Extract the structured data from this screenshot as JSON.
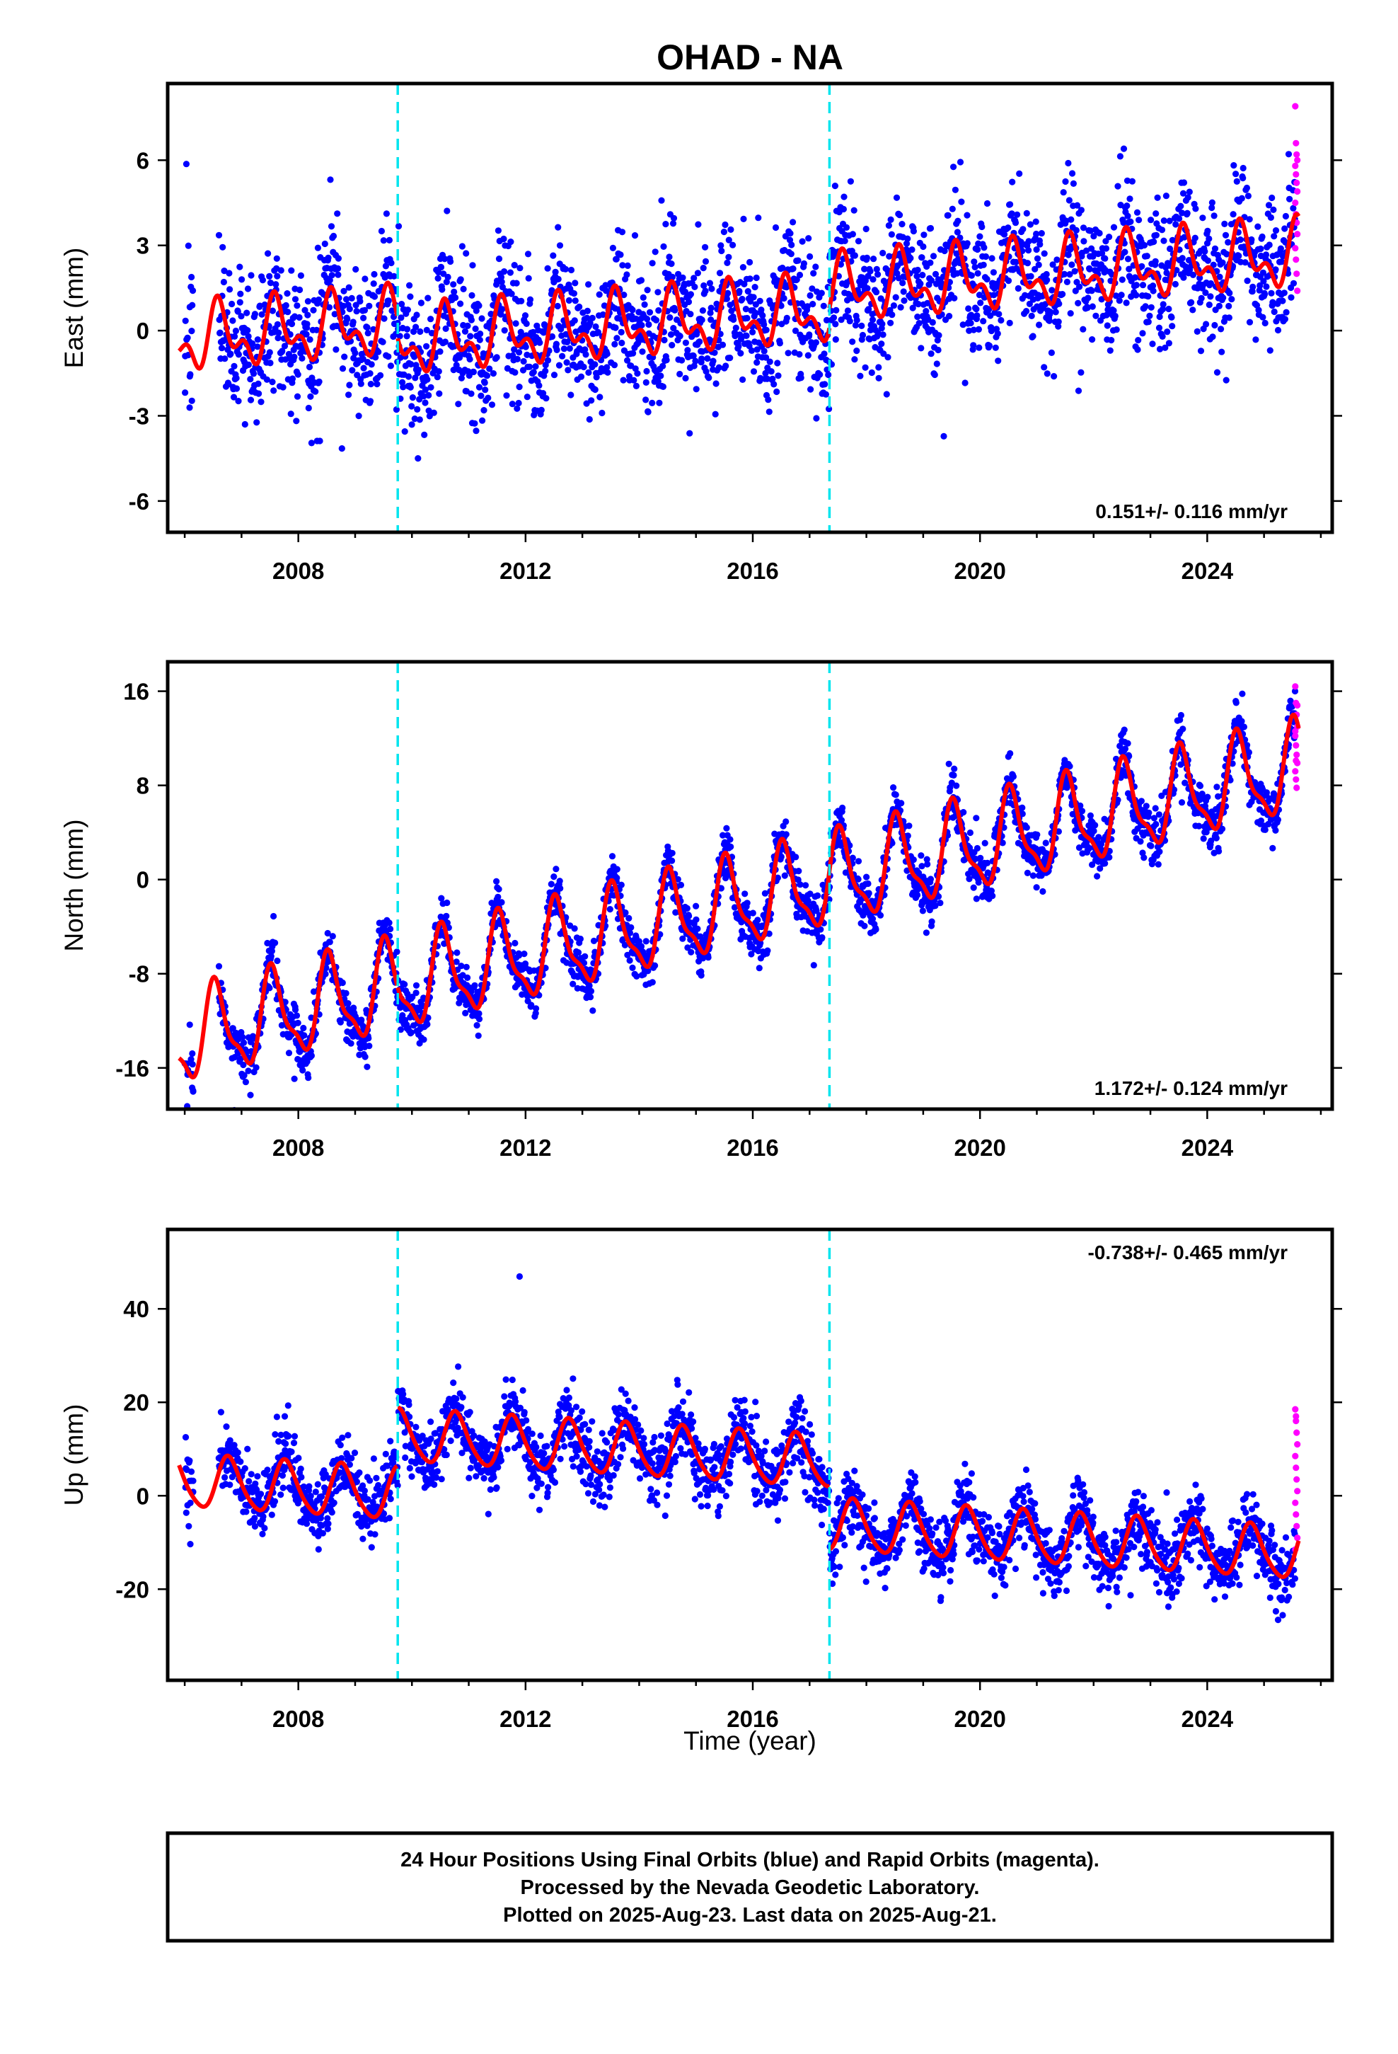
{
  "chart_data": {
    "type": "scatter",
    "title": "OHAD - NA",
    "xlabel": "Time (year)",
    "x_tick_labels": [
      "2008",
      "2012",
      "2016",
      "2020",
      "2024"
    ],
    "xlim": [
      2005.7,
      2026.2
    ],
    "break_lines": [
      2009.75,
      2017.35
    ],
    "colors": {
      "final_orbits": "#0000ff",
      "rapid_orbits": "#ff00ff",
      "model": "#ff0000",
      "breaks": "#00e5ee"
    },
    "panels": [
      {
        "name": "East",
        "ylabel": "East (mm)",
        "ylim": [
          -7.1,
          8.7
        ],
        "y_ticks": [
          6,
          3,
          0,
          -3,
          -6
        ],
        "y_tick_labels": [
          "6",
          "3",
          "0",
          "-3",
          "-6"
        ],
        "rate_text": "0.151+/- 0.116 mm/yr",
        "rate_position": "bottom-right",
        "data_start": 2006.6,
        "data_end": 2025.55,
        "model": {
          "segments": [
            {
              "start": 2005.9,
              "end": 2009.75,
              "offset": -0.3,
              "slope": 0.151
            },
            {
              "start": 2009.75,
              "end": 2017.35,
              "offset": -1.0,
              "slope": 0.151
            },
            {
              "start": 2017.35,
              "end": 2025.62,
              "offset": -0.3,
              "slope": 0.151
            }
          ],
          "annual_amplitude": 0.9,
          "semiannual_amplitude": 0.6,
          "annual_phase": 0.62
        },
        "scatter_noise": 1.2,
        "rapid_points": [
          7.9,
          6.6,
          6.2,
          6.0,
          5.8,
          5.5,
          5.2,
          4.9,
          4.5,
          4.1,
          3.8,
          3.4,
          2.9,
          2.5,
          2.0,
          1.4
        ]
      },
      {
        "name": "North",
        "ylabel": "North (mm)",
        "ylim": [
          -19.5,
          18.5
        ],
        "y_ticks": [
          16,
          8,
          0,
          -8,
          -16
        ],
        "y_tick_labels": [
          "16",
          "8",
          "0",
          "-8",
          "-16"
        ],
        "rate_text": "1.172+/- 0.124 mm/yr",
        "rate_position": "bottom-right",
        "data_start": 2006.6,
        "data_end": 2025.55,
        "model": {
          "segments": [
            {
              "start": 2005.9,
              "end": 2009.75,
              "offset": -13.5,
              "slope": 1.172
            },
            {
              "start": 2009.75,
              "end": 2017.35,
              "offset": -13.5,
              "slope": 1.172
            },
            {
              "start": 2017.35,
              "end": 2025.62,
              "offset": -13.5,
              "slope": 1.172
            }
          ],
          "annual_amplitude": 3.6,
          "semiannual_amplitude": 1.2,
          "annual_phase": 0.55
        },
        "scatter_noise": 1.1,
        "rapid_points": [
          16.4,
          15.0,
          14.0,
          13.0,
          12.2,
          11.4,
          10.6,
          9.9,
          9.2,
          8.5,
          7.8,
          14.8,
          12.6,
          10.1
        ]
      },
      {
        "name": "Up",
        "ylabel": "Up (mm)",
        "ylim": [
          -39.5,
          57
        ],
        "y_ticks": [
          40,
          20,
          0,
          -20
        ],
        "y_tick_labels": [
          "40",
          "20",
          "0",
          "-20"
        ],
        "rate_text": "-0.738+/- 0.465 mm/yr",
        "rate_position": "top-right",
        "data_start": 2006.6,
        "data_end": 2025.55,
        "model": {
          "segments": [
            {
              "start": 2005.9,
              "end": 2009.75,
              "offset": 3.0,
              "slope": -0.738
            },
            {
              "start": 2009.75,
              "end": 2017.35,
              "offset": 15.5,
              "slope": -0.738
            },
            {
              "start": 2017.35,
              "end": 2025.62,
              "offset": 2.0,
              "slope": -0.738
            }
          ],
          "annual_amplitude": 5.5,
          "semiannual_amplitude": 0.8,
          "annual_phase": 0.78
        },
        "scatter_noise": 3.6,
        "rapid_points": [
          18.5,
          16.0,
          13.5,
          11.0,
          8.5,
          6.0,
          3.5,
          1.0,
          -1.5,
          -4.0,
          -6.5,
          -9.0,
          -11.5,
          17.0
        ]
      }
    ]
  },
  "footer": {
    "line1": "24 Hour Positions Using Final Orbits (blue) and Rapid Orbits (magenta).",
    "line2": "Processed by the Nevada Geodetic Laboratory.",
    "line3": "Plotted on 2025-Aug-23. Last data on 2025-Aug-21."
  }
}
